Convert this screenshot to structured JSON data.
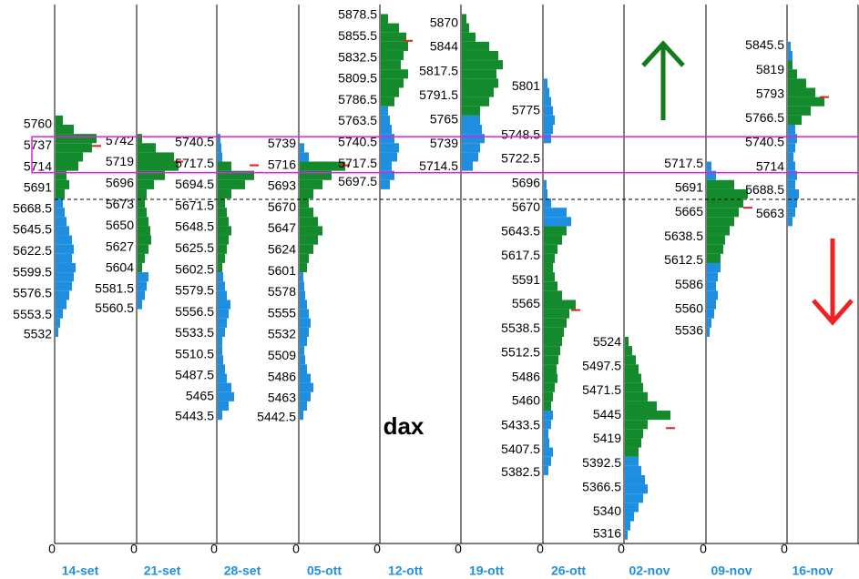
{
  "chart_data": {
    "type": "market_profile",
    "title": "dax",
    "bin": 10,
    "range_high": 5747,
    "range_low": 5708,
    "reference_level": 5679,
    "zero_label": 0,
    "columns": [
      {
        "date": "14-set",
        "price_labels": [
          5760,
          5737,
          5714,
          5691,
          5668.5,
          5645.5,
          5622.5,
          5599.5,
          5576.5,
          5553.5,
          5532
        ],
        "poc": 5737,
        "segments": [
          {
            "color": "#1e8fe0",
            "from": 5530,
            "widths": [
              3,
              5,
              8,
              12,
              15,
              18,
              20,
              22,
              18,
              20,
              18,
              15,
              12,
              10,
              8
            ]
          },
          {
            "color": "#138a2c",
            "from": 5680,
            "widths": [
              10,
              15,
              12,
              25,
              30,
              40,
              45,
              20,
              8
            ]
          }
        ]
      },
      {
        "date": "21-set",
        "price_labels": [
          5742,
          5719,
          5696,
          5673,
          5650,
          5627,
          5604,
          5581.5,
          5560.5
        ],
        "poc": 5720,
        "segments": [
          {
            "color": "#1e8fe0",
            "from": 5560,
            "widths": [
              5,
              8,
              10,
              12
            ]
          },
          {
            "color": "#138a2c",
            "from": 5600,
            "widths": [
              5,
              8,
              12,
              15,
              14,
              12,
              10,
              8,
              10,
              18,
              30,
              45,
              40,
              20,
              5
            ]
          }
        ]
      },
      {
        "date": "28-set",
        "price_labels": [
          5740.5,
          5717.5,
          5694.5,
          5671.5,
          5648.5,
          5625.5,
          5602.5,
          5579.5,
          5556.5,
          5533.5,
          5510.5,
          5487.5,
          5465,
          5443.5
        ],
        "poc": 5716,
        "segments": [
          {
            "color": "#1e8fe0",
            "from": 5440,
            "widths": [
              5,
              12,
              18,
              15,
              10,
              8,
              6,
              5,
              5,
              8,
              10,
              12,
              14,
              10,
              8,
              6
            ]
          },
          {
            "color": "#138a2c",
            "from": 5600,
            "widths": [
              5,
              8,
              10,
              12,
              15,
              12,
              10,
              8,
              15,
              30,
              40,
              15
            ]
          },
          {
            "color": "#1e8fe0",
            "from": 5720,
            "widths": [
              5,
              4,
              3
            ]
          }
        ]
      },
      {
        "date": "05-ott",
        "price_labels": [
          5739,
          5716,
          5693,
          5670,
          5647,
          5624,
          5601,
          5578,
          5555,
          5532,
          5509,
          5486,
          5463,
          5442.5
        ],
        "poc": 5716,
        "segments": [
          {
            "color": "#1e8fe0",
            "from": 5440,
            "widths": [
              4,
              8,
              12,
              15,
              12,
              8,
              6,
              5,
              8,
              10,
              12,
              10,
              8,
              6,
              5,
              4
            ]
          },
          {
            "color": "#138a2c",
            "from": 5600,
            "widths": [
              8,
              10,
              15,
              20,
              25,
              20,
              15,
              10,
              15,
              25,
              35,
              50
            ]
          },
          {
            "color": "#1e8fe0",
            "from": 5720,
            "widths": [
              10,
              5
            ]
          }
        ]
      },
      {
        "date": "12-ott",
        "price_labels": [
          5878.5,
          5855.5,
          5832.5,
          5809.5,
          5786.5,
          5763.5,
          5740.5,
          5717.5,
          5697.5
        ],
        "poc": 5851,
        "segments": [
          {
            "color": "#1e8fe0",
            "from": 5690,
            "widths": [
              10,
              15,
              12,
              18,
              20,
              15,
              12,
              10,
              8
            ]
          },
          {
            "color": "#138a2c",
            "from": 5780,
            "widths": [
              15,
              20,
              25,
              30,
              22,
              25,
              30,
              28,
              20,
              8
            ]
          }
        ]
      },
      {
        "date": "19-ott",
        "price_labels": [
          5870,
          5844,
          5817.5,
          5791.5,
          5765,
          5739,
          5714.5
        ],
        "segments": [
          {
            "color": "#1e8fe0",
            "from": 5710,
            "widths": [
              12,
              18,
              20,
              25,
              22,
              20
            ]
          },
          {
            "color": "#138a2c",
            "from": 5770,
            "widths": [
              20,
              30,
              35,
              40,
              38,
              45,
              40,
              30,
              15,
              8,
              5
            ]
          }
        ]
      },
      {
        "date": "26-ott",
        "price_labels": [
          5801,
          5775,
          5748.5,
          5722.5,
          5696,
          5670,
          5643.5,
          5617.5,
          5591,
          5565,
          5538.5,
          5512.5,
          5486,
          5460,
          5433.5,
          5407.5,
          5382.5
        ],
        "poc": 5559,
        "segments": [
          {
            "color": "#1e8fe0",
            "from": 5380,
            "widths": [
              5,
              8,
              10,
              6,
              5,
              8,
              10
            ]
          },
          {
            "color": "#138a2c",
            "from": 5450,
            "widths": [
              8,
              10,
              12,
              15,
              14,
              16,
              18,
              20,
              22,
              25,
              28,
              35,
              20,
              15,
              12,
              10,
              12,
              15,
              20,
              25
            ]
          },
          {
            "color": "#1e8fe0",
            "from": 5650,
            "widths": [
              30,
              25,
              8,
              4,
              3
            ]
          },
          {
            "color": "#1e8fe0",
            "from": 5740,
            "widths": [
              8,
              10,
              12,
              10,
              8,
              6,
              4
            ]
          }
        ]
      },
      {
        "date": "02-nov",
        "price_labels": [
          5524,
          5497.5,
          5471.5,
          5445,
          5419,
          5392.5,
          5366.5,
          5340,
          5316
        ],
        "poc": 5431,
        "segments": [
          {
            "color": "#1e8fe0",
            "from": 5310,
            "widths": [
              3,
              6,
              10,
              15,
              20,
              25,
              22,
              18,
              15
            ]
          },
          {
            "color": "#138a2c",
            "from": 5400,
            "widths": [
              15,
              18,
              20,
              25,
              50,
              35,
              25,
              20,
              18,
              15,
              12,
              8,
              4
            ]
          }
        ]
      },
      {
        "date": "09-nov",
        "price_labels": [
          5717.5,
          5691,
          5665,
          5638.5,
          5612.5,
          5586,
          5560,
          5536
        ],
        "poc": 5670,
        "segments": [
          {
            "color": "#1e8fe0",
            "from": 5530,
            "widths": [
              3,
              5,
              8,
              10,
              12,
              10,
              12,
              15
            ]
          },
          {
            "color": "#138a2c",
            "from": 5610,
            "widths": [
              15,
              18,
              20,
              25,
              30,
              35,
              40,
              45,
              30
            ]
          },
          {
            "color": "#1e8fe0",
            "from": 5700,
            "widths": [
              10,
              5
            ]
          }
        ]
      },
      {
        "date": "16-nov",
        "price_labels": [
          5845.5,
          5819,
          5793,
          5766.5,
          5740.5,
          5714,
          5688.5,
          5663
        ],
        "poc": 5790,
        "segments": [
          {
            "color": "#1e8fe0",
            "from": 5650,
            "widths": [
              5,
              8,
              10,
              12,
              8,
              10,
              8,
              6,
              8,
              10,
              8
            ]
          },
          {
            "color": "#138a2c",
            "from": 5760,
            "widths": [
              15,
              25,
              40,
              30,
              20,
              10,
              5
            ]
          },
          {
            "color": "#1e8fe0",
            "from": 5830,
            "widths": [
              5,
              3
            ]
          }
        ]
      }
    ]
  }
}
